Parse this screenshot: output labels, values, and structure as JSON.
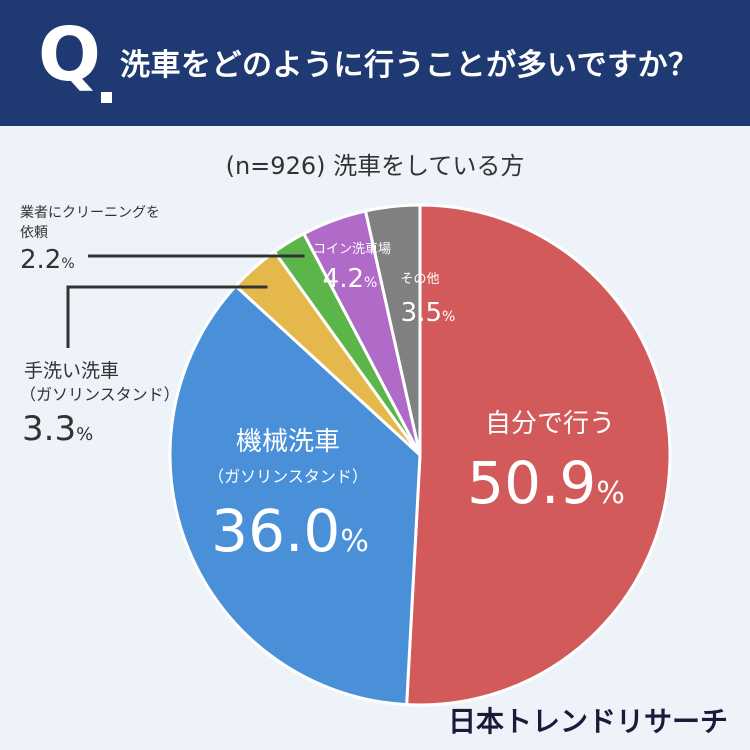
{
  "header": {
    "q_mark": "Q",
    "question": "洗車をどのように行うことが多いですか？"
  },
  "subtitle": "(n=926) 洗車をしている方",
  "brand": "日本トレンドリサーチ",
  "chart_data": {
    "type": "pie",
    "title": "洗車をどのように行うことが多いですか？",
    "subtitle": "(n=926) 洗車をしている方",
    "start": "top-clockwise",
    "slices": [
      {
        "key": "self",
        "label": "自分で行う",
        "sublabel": "",
        "value": 50.9,
        "value_text": "50.9",
        "unit": "%",
        "color": "#d35a5a"
      },
      {
        "key": "machine",
        "label": "機械洗車",
        "sublabel": "（ガソリンスタンド）",
        "value": 36.0,
        "value_text": "36.0",
        "unit": "%",
        "color": "#4a90d9"
      },
      {
        "key": "hand",
        "label": "手洗い洗車",
        "sublabel": "（ガソリンスタンド）",
        "value": 3.3,
        "value_text": "3.3",
        "unit": "%",
        "color": "#e4b84a"
      },
      {
        "key": "pro",
        "label": "業者にクリーニングを",
        "sublabel": "依頼",
        "value": 2.2,
        "value_text": "2.2",
        "unit": "%",
        "color": "#5bb548"
      },
      {
        "key": "coin",
        "label": "コイン洗車場",
        "sublabel": "",
        "value": 4.2,
        "value_text": "4.2",
        "unit": "%",
        "color": "#b06ac8"
      },
      {
        "key": "other",
        "label": "その他",
        "sublabel": "",
        "value": 3.5,
        "value_text": "3.5",
        "unit": "%",
        "color": "#808080"
      }
    ]
  }
}
